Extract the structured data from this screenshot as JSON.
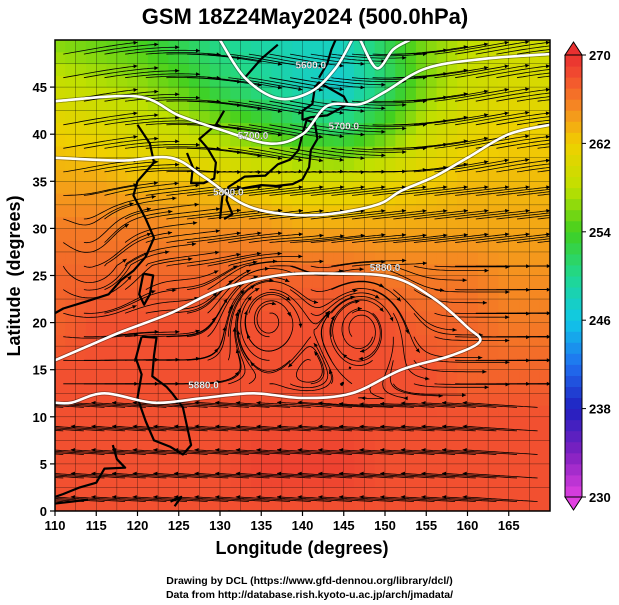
{
  "chart_data": {
    "type": "heatmap",
    "title": "GSM 18Z24May2024 (500.0hPa)",
    "xlabel": "Longitude (degrees)",
    "ylabel": "Latitude  (degrees)",
    "xlim": [
      110,
      170
    ],
    "ylim": [
      0,
      50
    ],
    "x_ticks": [
      110,
      115,
      120,
      125,
      130,
      135,
      140,
      145,
      150,
      155,
      160,
      165
    ],
    "y_ticks": [
      0,
      5,
      10,
      15,
      20,
      25,
      30,
      35,
      40,
      45
    ],
    "grid": true,
    "colorbar": {
      "min": 230,
      "max": 270,
      "ticks": [
        230,
        238,
        246,
        254,
        262,
        270
      ],
      "stops": [
        {
          "value": 230,
          "color": "#e040e0"
        },
        {
          "value": 234,
          "color": "#8020c0"
        },
        {
          "value": 238,
          "color": "#2020c0"
        },
        {
          "value": 242,
          "color": "#2070f0"
        },
        {
          "value": 246,
          "color": "#10c8e8"
        },
        {
          "value": 250,
          "color": "#20d890"
        },
        {
          "value": 254,
          "color": "#40d020"
        },
        {
          "value": 258,
          "color": "#c0e000"
        },
        {
          "value": 262,
          "color": "#f0d000"
        },
        {
          "value": 265,
          "color": "#f59020"
        },
        {
          "value": 268,
          "color": "#f25030"
        },
        {
          "value": 270,
          "color": "#e83030"
        }
      ]
    },
    "temperature_field": {
      "description_units": "K",
      "lat": [
        50,
        45,
        40,
        35,
        30,
        25,
        20,
        15,
        10,
        5,
        0
      ],
      "lon": [
        110,
        115,
        120,
        125,
        130,
        135,
        140,
        145,
        150,
        155,
        160,
        165,
        170
      ],
      "values": [
        [
          256,
          255,
          254,
          252,
          250,
          249,
          248,
          248,
          252,
          256,
          258,
          259,
          259
        ],
        [
          259,
          258,
          257,
          255,
          252,
          250,
          248,
          247,
          251,
          256,
          259,
          260,
          260
        ],
        [
          262,
          261,
          260,
          259,
          257,
          255,
          253,
          252,
          255,
          259,
          261,
          262,
          262
        ],
        [
          264,
          264,
          263,
          263,
          262,
          261,
          260,
          260,
          261,
          262,
          263,
          263,
          263
        ],
        [
          266,
          266,
          266,
          265,
          265,
          265,
          264,
          264,
          264,
          264,
          264,
          264,
          264
        ],
        [
          267,
          267,
          267,
          267,
          267,
          267,
          267,
          267,
          266,
          266,
          266,
          265,
          265
        ],
        [
          267,
          268,
          268,
          268,
          268,
          268,
          268,
          268,
          268,
          267,
          267,
          266,
          266
        ],
        [
          268,
          268,
          268,
          268,
          268,
          268,
          268,
          268,
          268,
          268,
          267,
          267,
          267
        ],
        [
          268,
          268,
          268,
          268,
          268,
          268,
          268,
          268,
          268,
          268,
          268,
          268,
          268
        ],
        [
          268,
          268,
          268,
          268,
          268,
          269,
          269,
          269,
          268,
          268,
          268,
          268,
          268
        ],
        [
          268,
          268,
          268,
          268,
          268,
          268,
          268,
          268,
          268,
          268,
          268,
          268,
          268
        ]
      ]
    },
    "contours": [
      {
        "label": "5700.0",
        "points": [
          [
            110,
            43.5
          ],
          [
            120,
            44
          ],
          [
            125,
            42
          ],
          [
            130,
            40.5
          ],
          [
            136,
            39
          ],
          [
            140,
            40
          ],
          [
            143,
            43
          ],
          [
            147,
            43.2
          ],
          [
            150,
            44.5
          ],
          [
            155,
            47
          ],
          [
            162,
            48
          ],
          [
            170,
            48.5
          ]
        ]
      },
      {
        "label": "5800.0",
        "points": [
          [
            110,
            37.5
          ],
          [
            118,
            37.2
          ],
          [
            124,
            37.5
          ],
          [
            128,
            35.5
          ],
          [
            133,
            32.5
          ],
          [
            138,
            31.5
          ],
          [
            143,
            31.5
          ],
          [
            149,
            32.5
          ],
          [
            152,
            34
          ],
          [
            156,
            35.5
          ],
          [
            160,
            37.5
          ],
          [
            165,
            40
          ],
          [
            170,
            41
          ]
        ]
      },
      {
        "label": "5880.0",
        "points": [
          [
            110,
            16
          ],
          [
            114,
            17.5
          ],
          [
            118,
            19
          ],
          [
            124,
            21
          ],
          [
            130,
            23.5
          ],
          [
            137,
            25
          ],
          [
            144,
            25.2
          ],
          [
            151,
            24.8
          ],
          [
            156,
            22.5
          ],
          [
            160,
            19.5
          ],
          [
            161.5,
            18
          ],
          [
            158,
            16.5
          ],
          [
            152,
            15
          ],
          [
            146,
            12.5
          ],
          [
            140,
            12
          ],
          [
            134,
            12.5
          ],
          [
            128,
            12
          ],
          [
            122,
            11.5
          ],
          [
            116,
            12.5
          ],
          [
            112,
            11.5
          ],
          [
            110,
            11.5
          ]
        ]
      },
      {
        "label": "5600.0",
        "points": [
          [
            130,
            50
          ],
          [
            133,
            46
          ],
          [
            137,
            43.8
          ],
          [
            141,
            44.5
          ],
          [
            144,
            47
          ],
          [
            146,
            50
          ]
        ]
      },
      {
        "label": "",
        "points": [
          [
            147,
            50
          ],
          [
            149,
            47
          ],
          [
            151,
            49
          ],
          [
            153,
            50
          ]
        ]
      }
    ],
    "contour_labels": [
      {
        "text": "5600.0",
        "lon": 141,
        "lat": 47
      },
      {
        "text": "5700.0",
        "lon": 134,
        "lat": 39.5
      },
      {
        "text": "5700.0",
        "lon": 145,
        "lat": 40.5
      },
      {
        "text": "5800.0",
        "lon": 131,
        "lat": 33.5
      },
      {
        "text": "5880.0",
        "lon": 150,
        "lat": 25.5
      },
      {
        "text": "5880.0",
        "lon": 128,
        "lat": 13
      }
    ],
    "wind_centers": [
      {
        "lon": 114,
        "lat": 27,
        "type": "cyclonic"
      },
      {
        "lon": 136,
        "lat": 21,
        "type": "anticyclonic"
      },
      {
        "lon": 147,
        "lat": 20,
        "type": "anticyclonic"
      }
    ]
  },
  "footer": {
    "line1": "Drawing by DCL (https://www.gfd-dennou.org/library/dcl/)",
    "line2": "Data from http://database.rish.kyoto-u.ac.jp/arch/jmadata/"
  }
}
